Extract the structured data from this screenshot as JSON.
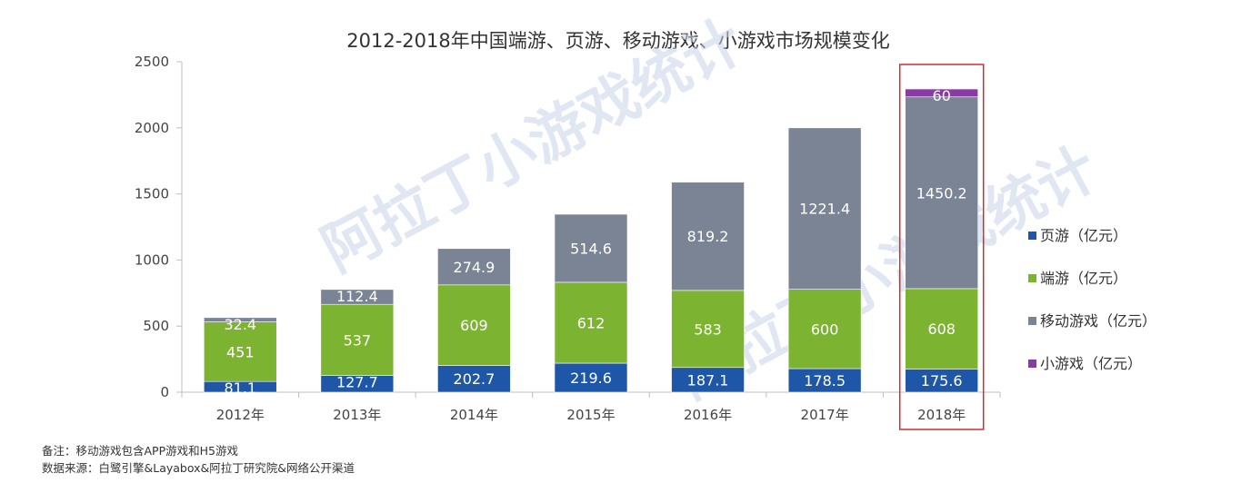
{
  "chart_data": {
    "type": "bar",
    "stacked": true,
    "title": "2012-2018年中国端游、页游、移动游戏、小游戏市场规模变化",
    "categories": [
      "2012年",
      "2013年",
      "2014年",
      "2015年",
      "2016年",
      "2017年",
      "2018年"
    ],
    "ylim": [
      0,
      2500
    ],
    "yticks": [
      "0",
      "500",
      "1000",
      "1500",
      "2000",
      "2500"
    ],
    "ytick_values": [
      0,
      500,
      1000,
      1500,
      2000,
      2500
    ],
    "legend_position": "right",
    "series": [
      {
        "name": "页游（亿元）",
        "color": "#1f57a8",
        "values": [
          81.1,
          127.7,
          202.7,
          219.6,
          187.1,
          178.5,
          175.6
        ]
      },
      {
        "name": "端游（亿元）",
        "color": "#7cb331",
        "values": [
          451,
          537,
          609,
          612,
          583,
          600,
          608
        ]
      },
      {
        "name": "移动游戏（亿元）",
        "color": "#7a8494",
        "values": [
          32.4,
          112.4,
          274.9,
          514.6,
          819.2,
          1221.4,
          1450.2
        ]
      },
      {
        "name": "小游戏（亿元）",
        "color": "#8a3aa6",
        "values": [
          null,
          null,
          null,
          null,
          null,
          null,
          60
        ]
      }
    ],
    "highlight_category": "2018年",
    "highlight_color": "#d62b2b"
  },
  "notes": {
    "line1": "备注：移动游戏包含APP游戏和H5游戏",
    "line2": "数据来源：白鹭引擎&Layabox&阿拉丁研究院&网络公开渠道"
  },
  "watermark": {
    "text1": "阿拉丁小游戏统计",
    "text2": "阿拉丁小游戏统计"
  }
}
